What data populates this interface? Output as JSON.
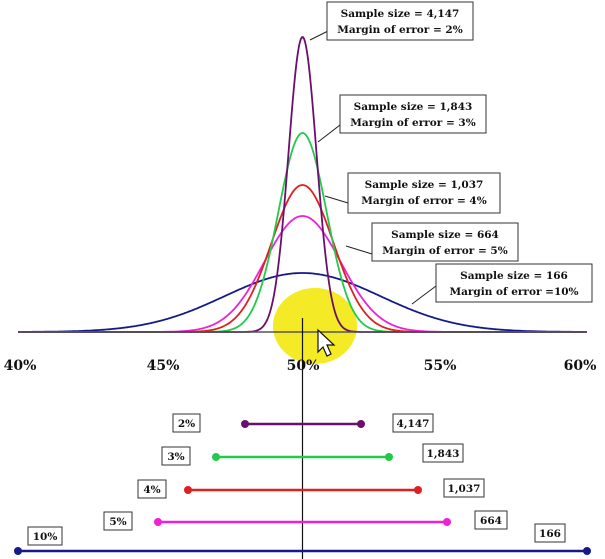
{
  "chart_data": {
    "type": "line",
    "x_unit": "percent",
    "xlim": [
      40,
      60
    ],
    "x_ticks": [
      "40%",
      "45%",
      "50%",
      "55%",
      "60%"
    ],
    "series": [
      {
        "color": "#6a0f6e",
        "sample_size": 4147,
        "margin_of_error": 2,
        "callout_lines": [
          "Sample size = 4,147",
          "Margin of error = 2%"
        ],
        "interval_label": "2%",
        "interval": [
          48,
          52
        ],
        "size_label": "4,147"
      },
      {
        "color": "#22c94a",
        "sample_size": 1843,
        "margin_of_error": 3,
        "callout_lines": [
          "Sample size = 1,843",
          "Margin of error = 3%"
        ],
        "interval_label": "3%",
        "interval": [
          47,
          53
        ],
        "size_label": "1,843"
      },
      {
        "color": "#e02020",
        "sample_size": 1037,
        "margin_of_error": 4,
        "callout_lines": [
          "Sample size = 1,037",
          "Margin of error = 4%"
        ],
        "interval_label": "4%",
        "interval": [
          46,
          54
        ],
        "size_label": "1,037"
      },
      {
        "color": "#f020d8",
        "sample_size": 664,
        "margin_of_error": 5,
        "callout_lines": [
          "Sample size = 664",
          "Margin of error = 5%"
        ],
        "interval_label": "5%",
        "interval": [
          45,
          55
        ],
        "size_label": "664"
      },
      {
        "color": "#151a8a",
        "sample_size": 166,
        "margin_of_error": 10,
        "callout_lines": [
          "Sample size = 166",
          "Margin of error =10%"
        ],
        "interval_label": "10%",
        "interval": [
          40,
          60
        ],
        "size_label": "166"
      }
    ]
  },
  "colors": {
    "axis": "#555555",
    "center_line": "#111111",
    "highlight": "#f2e600"
  },
  "overlay": {
    "cursor_icon": "mouse-pointer-icon"
  }
}
